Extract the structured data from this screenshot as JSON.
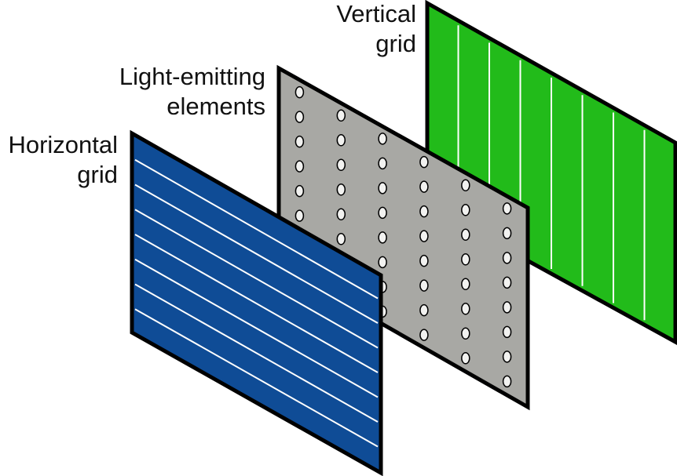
{
  "labels": {
    "vertical_grid": [
      "Vertical",
      "grid"
    ],
    "light_emitting": [
      "Light-emitting",
      "elements"
    ],
    "horizontal_grid": [
      "Horizontal",
      "grid"
    ]
  },
  "colors": {
    "vertical_grid_fill": "#22bb1a",
    "light_emitting_fill": "#a8a8a4",
    "horizontal_grid_fill": "#0f4c96",
    "outline": "#000000",
    "grid_lines": "#ffffff",
    "element_fill": "#f2f2f0"
  },
  "layers": [
    {
      "name": "vertical-grid",
      "lines": 7
    },
    {
      "name": "light-emitting-elements",
      "element_rows": 8,
      "element_cols": 6
    },
    {
      "name": "horizontal-grid",
      "lines": 7
    }
  ]
}
